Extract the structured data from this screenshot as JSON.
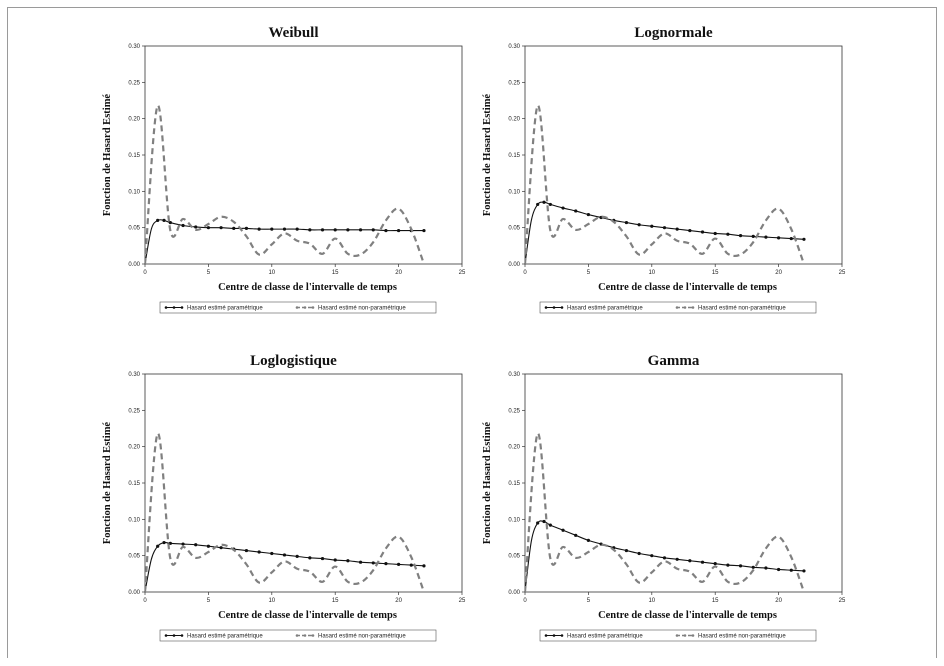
{
  "chart_data": [
    {
      "type": "line",
      "title": "Weibull",
      "xlabel": "Centre de classe de l'intervalle de temps",
      "ylabel": "Fonction de Hasard Estimé",
      "xlim": [
        0,
        25
      ],
      "ylim": [
        0,
        0.3
      ],
      "xticks": [
        "0",
        "5",
        "10",
        "15",
        "20",
        "25"
      ],
      "yticks": [
        "0.00",
        "0.05",
        "0.10",
        "0.15",
        "0.20",
        "0.25",
        "0.30"
      ],
      "legend_position": "bottom",
      "series": [
        {
          "name": "Hasard estimé paramétrique",
          "style": "solid-markers",
          "color": "#111111",
          "x": [
            0,
            0.5,
            1,
            1.5,
            2,
            3,
            4,
            5,
            6,
            7,
            8,
            9,
            10,
            11,
            12,
            13,
            14,
            15,
            16,
            17,
            18,
            19,
            20,
            21,
            22
          ],
          "y": [
            0,
            0.048,
            0.06,
            0.06,
            0.057,
            0.053,
            0.051,
            0.05,
            0.05,
            0.049,
            0.049,
            0.048,
            0.048,
            0.048,
            0.048,
            0.047,
            0.047,
            0.047,
            0.047,
            0.047,
            0.047,
            0.046,
            0.046,
            0.046,
            0.046
          ]
        },
        {
          "name": "Hasard estimé non-paramétrique",
          "style": "dashed",
          "color": "#808080",
          "x": [
            0,
            1,
            2,
            3,
            4,
            5,
            6,
            7,
            8,
            9,
            10,
            11,
            12,
            13,
            14,
            15,
            16,
            17,
            18,
            19,
            20,
            21,
            22
          ],
          "y": [
            0,
            0.218,
            0.046,
            0.062,
            0.047,
            0.055,
            0.065,
            0.058,
            0.038,
            0.013,
            0.027,
            0.042,
            0.032,
            0.028,
            0.014,
            0.035,
            0.014,
            0.013,
            0.03,
            0.06,
            0.076,
            0.048,
            0
          ]
        }
      ]
    },
    {
      "type": "line",
      "title": "Lognormale",
      "xlabel": "Centre de classe de l'intervalle de temps",
      "ylabel": "Fonction de Hasard Estimé",
      "xlim": [
        0,
        25
      ],
      "ylim": [
        0,
        0.3
      ],
      "xticks": [
        "0",
        "5",
        "10",
        "15",
        "20",
        "25"
      ],
      "yticks": [
        "0.00",
        "0.05",
        "0.10",
        "0.15",
        "0.20",
        "0.25",
        "0.30"
      ],
      "legend_position": "bottom",
      "series": [
        {
          "name": "Hasard estimé paramétrique",
          "style": "solid-markers",
          "color": "#111111",
          "x": [
            0,
            0.5,
            1,
            1.5,
            2,
            3,
            4,
            5,
            6,
            7,
            8,
            9,
            10,
            11,
            12,
            13,
            14,
            15,
            16,
            17,
            18,
            19,
            20,
            21,
            22
          ],
          "y": [
            0,
            0.06,
            0.082,
            0.085,
            0.082,
            0.077,
            0.073,
            0.068,
            0.064,
            0.06,
            0.057,
            0.054,
            0.052,
            0.05,
            0.048,
            0.046,
            0.044,
            0.042,
            0.041,
            0.039,
            0.038,
            0.037,
            0.036,
            0.035,
            0.034
          ]
        },
        {
          "name": "Hasard estimé non-paramétrique",
          "style": "dashed",
          "color": "#808080",
          "x": [
            0,
            1,
            2,
            3,
            4,
            5,
            6,
            7,
            8,
            9,
            10,
            11,
            12,
            13,
            14,
            15,
            16,
            17,
            18,
            19,
            20,
            21,
            22
          ],
          "y": [
            0,
            0.218,
            0.046,
            0.062,
            0.047,
            0.055,
            0.065,
            0.058,
            0.038,
            0.013,
            0.027,
            0.042,
            0.032,
            0.028,
            0.014,
            0.035,
            0.014,
            0.013,
            0.03,
            0.06,
            0.076,
            0.048,
            0
          ]
        }
      ]
    },
    {
      "type": "line",
      "title": "Loglogistique",
      "xlabel": "Centre de classe de l'intervalle de temps",
      "ylabel": "Fonction de Hasard Estimé",
      "xlim": [
        0,
        25
      ],
      "ylim": [
        0,
        0.3
      ],
      "xticks": [
        "0",
        "5",
        "10",
        "15",
        "20",
        "25"
      ],
      "yticks": [
        "0.00",
        "0.05",
        "0.10",
        "0.15",
        "0.20",
        "0.25",
        "0.30"
      ],
      "legend_position": "bottom",
      "series": [
        {
          "name": "Hasard estimé paramétrique",
          "style": "solid-markers",
          "color": "#111111",
          "x": [
            0,
            0.5,
            1,
            1.5,
            2,
            3,
            4,
            5,
            6,
            7,
            8,
            9,
            10,
            11,
            12,
            13,
            14,
            15,
            16,
            17,
            18,
            19,
            20,
            21,
            22
          ],
          "y": [
            0,
            0.045,
            0.063,
            0.068,
            0.067,
            0.066,
            0.065,
            0.063,
            0.061,
            0.059,
            0.057,
            0.055,
            0.053,
            0.051,
            0.049,
            0.047,
            0.046,
            0.044,
            0.043,
            0.041,
            0.04,
            0.039,
            0.038,
            0.037,
            0.036
          ]
        },
        {
          "name": "Hasard estimé non-paramétrique",
          "style": "dashed",
          "color": "#808080",
          "x": [
            0,
            1,
            2,
            3,
            4,
            5,
            6,
            7,
            8,
            9,
            10,
            11,
            12,
            13,
            14,
            15,
            16,
            17,
            18,
            19,
            20,
            21,
            22
          ],
          "y": [
            0,
            0.218,
            0.046,
            0.062,
            0.047,
            0.055,
            0.065,
            0.058,
            0.038,
            0.013,
            0.027,
            0.042,
            0.032,
            0.028,
            0.014,
            0.035,
            0.014,
            0.013,
            0.03,
            0.06,
            0.076,
            0.048,
            0
          ]
        }
      ]
    },
    {
      "type": "line",
      "title": "Gamma",
      "xlabel": "Centre de classe de l'intervalle de temps",
      "ylabel": "Fonction de Hasard Estimé",
      "xlim": [
        0,
        25
      ],
      "ylim": [
        0,
        0.3
      ],
      "xticks": [
        "0",
        "5",
        "10",
        "15",
        "20",
        "25"
      ],
      "yticks": [
        "0.00",
        "0.05",
        "0.10",
        "0.15",
        "0.20",
        "0.25",
        "0.30"
      ],
      "legend_position": "bottom",
      "series": [
        {
          "name": "Hasard estimé paramétrique",
          "style": "solid-markers",
          "color": "#111111",
          "x": [
            0,
            0.5,
            1,
            1.5,
            2,
            3,
            4,
            5,
            6,
            7,
            8,
            9,
            10,
            11,
            12,
            13,
            14,
            15,
            16,
            17,
            18,
            19,
            20,
            21,
            22
          ],
          "y": [
            0,
            0.07,
            0.095,
            0.097,
            0.092,
            0.085,
            0.078,
            0.071,
            0.066,
            0.061,
            0.057,
            0.053,
            0.05,
            0.047,
            0.045,
            0.043,
            0.041,
            0.039,
            0.037,
            0.036,
            0.034,
            0.033,
            0.031,
            0.03,
            0.029
          ]
        },
        {
          "name": "Hasard estimé non-paramétrique",
          "style": "dashed",
          "color": "#808080",
          "x": [
            0,
            1,
            2,
            3,
            4,
            5,
            6,
            7,
            8,
            9,
            10,
            11,
            12,
            13,
            14,
            15,
            16,
            17,
            18,
            19,
            20,
            21,
            22
          ],
          "y": [
            0,
            0.218,
            0.046,
            0.062,
            0.047,
            0.055,
            0.065,
            0.058,
            0.038,
            0.013,
            0.027,
            0.042,
            0.032,
            0.028,
            0.014,
            0.035,
            0.014,
            0.013,
            0.03,
            0.06,
            0.076,
            0.048,
            0
          ]
        }
      ]
    }
  ]
}
